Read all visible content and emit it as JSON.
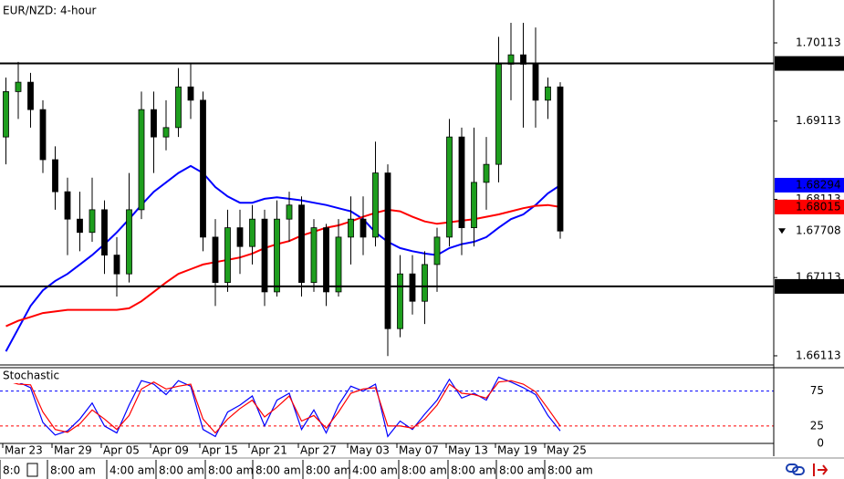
{
  "chart_data": [
    {
      "type": "candlestick",
      "title": "EUR/NZD: 4-hour",
      "categories": [
        null,
        "Mar 23",
        null,
        null,
        null,
        "Mar 29",
        null,
        null,
        null,
        "Apr 05",
        null,
        null,
        null,
        "Apr 09",
        null,
        null,
        null,
        "Apr 15",
        null,
        null,
        null,
        "Apr 21",
        null,
        null,
        null,
        "Apr 27",
        null,
        null,
        null,
        "May 03",
        null,
        null,
        null,
        "May 07",
        null,
        null,
        null,
        "May 13",
        null,
        null,
        null,
        "May 19",
        null,
        null,
        null,
        "May 25"
      ],
      "open": [
        1.6891,
        1.6949,
        1.6961,
        1.6926,
        1.6862,
        1.6821,
        1.6786,
        1.6769,
        1.6798,
        1.674,
        1.6716,
        1.6798,
        1.6926,
        1.6891,
        1.6903,
        1.6955,
        1.6938,
        1.6763,
        1.6705,
        1.6775,
        1.6751,
        1.6786,
        1.6693,
        1.6786,
        1.6804,
        1.6705,
        1.6775,
        1.6693,
        1.6763,
        1.6786,
        1.6763,
        1.6845,
        1.6646,
        1.6716,
        1.6681,
        1.6728,
        1.6763,
        1.6891,
        1.6775,
        1.6833,
        1.6856,
        1.6984,
        1.6996,
        1.6984,
        1.6938,
        1.6955
      ],
      "high": [
        1.6967,
        1.6987,
        1.6973,
        1.6938,
        1.6879,
        1.6839,
        1.6821,
        1.6839,
        1.681,
        1.6763,
        1.6845,
        1.6949,
        1.6949,
        1.6938,
        1.6979,
        1.6984,
        1.6949,
        1.6786,
        1.6798,
        1.6798,
        1.6804,
        1.6798,
        1.681,
        1.6821,
        1.6815,
        1.6786,
        1.678,
        1.6786,
        1.6815,
        1.6815,
        1.6885,
        1.6856,
        1.674,
        1.674,
        1.6745,
        1.6775,
        1.6914,
        1.6903,
        1.6903,
        1.6891,
        1.7019,
        1.7037,
        1.7037,
        1.7031,
        1.6967,
        1.6961
      ],
      "low": [
        1.6856,
        1.6914,
        1.6903,
        1.6845,
        1.6798,
        1.674,
        1.6745,
        1.6757,
        1.6716,
        1.6687,
        1.6705,
        1.6786,
        1.6845,
        1.6874,
        1.6891,
        1.6914,
        1.6745,
        1.6675,
        1.6693,
        1.6716,
        1.6728,
        1.6675,
        1.6687,
        1.6757,
        1.6687,
        1.6693,
        1.6675,
        1.6687,
        1.6728,
        1.674,
        1.6751,
        1.6611,
        1.6635,
        1.6664,
        1.6652,
        1.6693,
        1.6751,
        1.674,
        1.6751,
        1.6798,
        1.6833,
        1.6938,
        1.6903,
        1.6903,
        1.6914,
        1.6761
      ],
      "close": [
        1.6949,
        1.6961,
        1.6926,
        1.6862,
        1.6821,
        1.6786,
        1.6769,
        1.6798,
        1.674,
        1.6716,
        1.6798,
        1.6926,
        1.6891,
        1.6903,
        1.6955,
        1.6938,
        1.6763,
        1.6705,
        1.6775,
        1.6751,
        1.6786,
        1.6693,
        1.6786,
        1.6804,
        1.6705,
        1.6775,
        1.6693,
        1.6763,
        1.6786,
        1.6763,
        1.6845,
        1.6646,
        1.6716,
        1.6681,
        1.6728,
        1.6763,
        1.6891,
        1.6775,
        1.6833,
        1.6856,
        1.6984,
        1.6996,
        1.6984,
        1.6938,
        1.6955,
        1.67708
      ],
      "bull_color": "#1e9e1e",
      "bear_color": "#000000",
      "series": [
        {
          "color": "#0000ff",
          "values": [
            1.6617,
            1.6646,
            1.6675,
            1.6695,
            1.6707,
            1.6716,
            1.6728,
            1.674,
            1.6754,
            1.6769,
            1.6786,
            1.6804,
            1.6821,
            1.6833,
            1.6845,
            1.6854,
            1.6845,
            1.6827,
            1.6815,
            1.6807,
            1.6807,
            1.6812,
            1.6814,
            1.6812,
            1.681,
            1.6807,
            1.6804,
            1.68,
            1.6796,
            1.6786,
            1.6769,
            1.6757,
            1.6749,
            1.6745,
            1.6742,
            1.674,
            1.6749,
            1.6754,
            1.6757,
            1.6763,
            1.6775,
            1.6786,
            1.6792,
            1.6804,
            1.6819,
            1.68294
          ]
        },
        {
          "color": "#ff0000",
          "values": [
            1.6649,
            1.6656,
            1.6661,
            1.6666,
            1.6668,
            1.667,
            1.667,
            1.667,
            1.667,
            1.667,
            1.6672,
            1.6681,
            1.6693,
            1.6705,
            1.6716,
            1.6722,
            1.6728,
            1.6731,
            1.6734,
            1.6737,
            1.6742,
            1.6749,
            1.6754,
            1.6758,
            1.6765,
            1.677,
            1.6775,
            1.6778,
            1.6783,
            1.6789,
            1.6794,
            1.6798,
            1.6796,
            1.6789,
            1.6783,
            1.678,
            1.6782,
            1.6784,
            1.6786,
            1.6789,
            1.6792,
            1.6796,
            1.68,
            1.6803,
            1.6804,
            1.68015
          ]
        }
      ],
      "ylim": [
        1.65996,
        1.70661
      ],
      "yticks": [
        1.70113,
        1.69113,
        1.68113,
        1.67113,
        1.66113
      ],
      "levels": [
        {
          "value": 1.6985,
          "label": "1.69850"
        },
        {
          "value": 1.67,
          "label": "1.67000"
        }
      ],
      "level_color": "#000000"
    },
    {
      "type": "line",
      "title": "Stochastic",
      "series": [
        {
          "color": "#0000ff",
          "values": [
            92,
            88,
            80,
            30,
            12,
            18,
            35,
            58,
            25,
            15,
            55,
            90,
            85,
            70,
            90,
            82,
            20,
            10,
            45,
            55,
            68,
            25,
            62,
            72,
            20,
            48,
            15,
            55,
            82,
            75,
            85,
            10,
            32,
            20,
            42,
            62,
            92,
            65,
            72,
            62,
            95,
            88,
            80,
            70,
            40,
            18
          ]
        },
        {
          "color": "#ff0000",
          "values": [
            90,
            85,
            84,
            45,
            20,
            16,
            28,
            48,
            35,
            20,
            40,
            78,
            88,
            78,
            82,
            85,
            35,
            15,
            35,
            50,
            62,
            38,
            52,
            68,
            32,
            40,
            22,
            45,
            72,
            78,
            80,
            25,
            25,
            22,
            35,
            55,
            85,
            72,
            70,
            65,
            88,
            90,
            85,
            74,
            50,
            25
          ]
        }
      ],
      "ylim": [
        0,
        108.6
      ],
      "yticks": [
        75,
        25,
        0
      ],
      "level_colors": [
        "#0000ff",
        "#ff0000",
        "none"
      ]
    }
  ],
  "status_bar": [
    "8:0",
    "8:00 am",
    "4:00 am",
    "8:00 am",
    "8:00 am",
    "8:00 am",
    "8:00 am",
    "4:00 am",
    "8:00 am",
    "8:00 am",
    "8:00 am",
    "8:00 am"
  ]
}
